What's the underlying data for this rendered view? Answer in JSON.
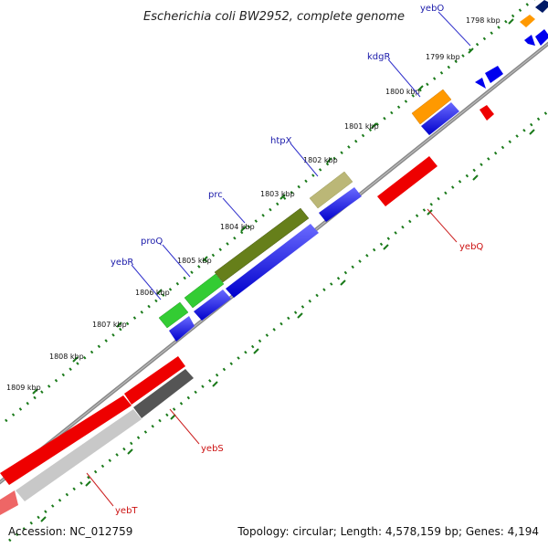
{
  "title": "Escherichia coli BW2952, complete genome",
  "footer": {
    "accession": "Accession: NC_012759",
    "summary": "Topology: circular; Length: 4,578,159 bp; Genes: 4,194"
  },
  "kbp_labels": [
    "1798 kbp",
    "1799 kbp",
    "1800 kbp",
    "1801 kbp",
    "1802 kbp",
    "1803 kbp",
    "1804 kbp",
    "1805 kbp",
    "1806 kbp",
    "1807 kbp",
    "1808 kbp",
    "1809 kbp"
  ],
  "genes_forward": [
    "yebO",
    "kdgR",
    "htpX",
    "prc",
    "proQ",
    "yebR"
  ],
  "genes_reverse": [
    "yebQ",
    "yebS",
    "yebT"
  ],
  "colors": {
    "cds": "#0000ee",
    "rrna_red": "#ee0000",
    "orange": "#ff9900",
    "olive_dark": "#667f1a",
    "olive_light": "#bbb777",
    "green": "#33cc33",
    "dark_gray": "#555555",
    "light_gray": "#c8c8c8",
    "navy": "#001a66",
    "ruler": "#1a7a1a",
    "backbone": "#7a7a7a"
  }
}
